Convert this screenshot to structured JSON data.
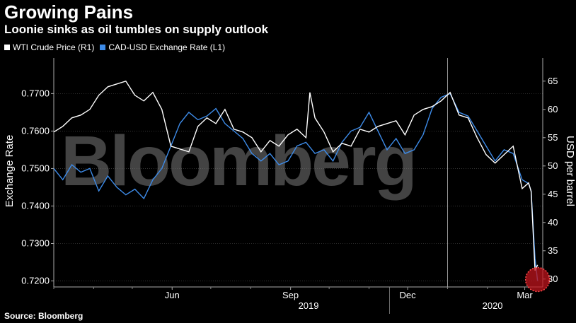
{
  "header": {
    "title": "Growing Pains",
    "subtitle": "Loonie sinks as oil tumbles on supply outlook"
  },
  "footer": {
    "source": "Source: Bloomberg"
  },
  "watermark": "Bloomberg",
  "colors": {
    "wti": "#ffffff",
    "cad": "#3d8be8",
    "highlight": "#c0141c",
    "grid": "#555555"
  },
  "chart_data": {
    "type": "line",
    "title": "Growing Pains",
    "subtitle": "Loonie sinks as oil tumbles on supply outlook",
    "ylabel_left": "Exchange Rate",
    "ylabel_right": "USD per barrel",
    "yticks_left": [
      "0.7700",
      "0.7600",
      "0.7500",
      "0.7400",
      "0.7300",
      "0.7200"
    ],
    "yticks_right": [
      "65",
      "60",
      "55",
      "50",
      "45",
      "40",
      "35",
      "30"
    ],
    "ylim_left": [
      0.7184,
      0.7795
    ],
    "ylim_right": [
      28.6,
      69.1
    ],
    "xticks": [
      "Jun",
      "Sep",
      "Dec",
      "Mar"
    ],
    "years": [
      "2019",
      "2020"
    ],
    "xlim": [
      "2019-03-01",
      "2020-03-15"
    ],
    "grid": true,
    "legend_position": "top-left",
    "series": [
      {
        "name": "WTI Crude Price (R1)",
        "axis": "right",
        "x": [
          "2019-03-01",
          "2019-03-08",
          "2019-03-15",
          "2019-03-22",
          "2019-03-29",
          "2019-04-05",
          "2019-04-12",
          "2019-04-19",
          "2019-04-26",
          "2019-05-03",
          "2019-05-10",
          "2019-05-17",
          "2019-05-24",
          "2019-05-31",
          "2019-06-07",
          "2019-06-14",
          "2019-06-21",
          "2019-06-28",
          "2019-07-05",
          "2019-07-12",
          "2019-07-19",
          "2019-07-26",
          "2019-08-02",
          "2019-08-09",
          "2019-08-16",
          "2019-08-23",
          "2019-08-30",
          "2019-09-06",
          "2019-09-13",
          "2019-09-16",
          "2019-09-20",
          "2019-09-27",
          "2019-10-04",
          "2019-10-11",
          "2019-10-18",
          "2019-10-25",
          "2019-11-01",
          "2019-11-08",
          "2019-11-15",
          "2019-11-22",
          "2019-11-29",
          "2019-12-06",
          "2019-12-13",
          "2019-12-20",
          "2019-12-27",
          "2020-01-03",
          "2020-01-10",
          "2020-01-17",
          "2020-01-24",
          "2020-01-31",
          "2020-02-07",
          "2020-02-14",
          "2020-02-21",
          "2020-02-28",
          "2020-03-04",
          "2020-03-06",
          "2020-03-09",
          "2020-03-11"
        ],
        "values": [
          56.0,
          57.0,
          58.5,
          59.0,
          60.0,
          62.5,
          64.0,
          64.5,
          65.0,
          62.5,
          61.5,
          63.0,
          60.0,
          53.5,
          53.0,
          52.5,
          57.0,
          58.5,
          57.5,
          60.0,
          56.5,
          56.0,
          55.0,
          52.5,
          54.5,
          53.5,
          55.5,
          56.5,
          55.0,
          63.0,
          58.5,
          56.0,
          52.5,
          54.0,
          53.5,
          56.5,
          56.0,
          57.0,
          57.5,
          58.0,
          55.5,
          59.0,
          60.0,
          60.5,
          61.5,
          63.0,
          59.0,
          58.5,
          55.0,
          52.0,
          50.5,
          52.0,
          53.5,
          46.0,
          47.0,
          45.5,
          31.5,
          32.5
        ]
      },
      {
        "name": "CAD-USD Exchange Rate (L1)",
        "axis": "left",
        "x": [
          "2019-03-01",
          "2019-03-08",
          "2019-03-15",
          "2019-03-22",
          "2019-03-29",
          "2019-04-05",
          "2019-04-12",
          "2019-04-19",
          "2019-04-26",
          "2019-05-03",
          "2019-05-10",
          "2019-05-17",
          "2019-05-24",
          "2019-05-31",
          "2019-06-07",
          "2019-06-14",
          "2019-06-21",
          "2019-06-28",
          "2019-07-05",
          "2019-07-12",
          "2019-07-19",
          "2019-07-26",
          "2019-08-02",
          "2019-08-09",
          "2019-08-16",
          "2019-08-23",
          "2019-08-30",
          "2019-09-06",
          "2019-09-13",
          "2019-09-20",
          "2019-09-27",
          "2019-10-04",
          "2019-10-11",
          "2019-10-18",
          "2019-10-25",
          "2019-11-01",
          "2019-11-08",
          "2019-11-15",
          "2019-11-22",
          "2019-11-29",
          "2019-12-06",
          "2019-12-13",
          "2019-12-20",
          "2019-12-27",
          "2020-01-03",
          "2020-01-10",
          "2020-01-17",
          "2020-01-24",
          "2020-01-31",
          "2020-02-07",
          "2020-02-14",
          "2020-02-21",
          "2020-02-28",
          "2020-03-04",
          "2020-03-06",
          "2020-03-09",
          "2020-03-11"
        ],
        "values": [
          0.75,
          0.747,
          0.751,
          0.749,
          0.75,
          0.744,
          0.748,
          0.745,
          0.743,
          0.7445,
          0.742,
          0.747,
          0.75,
          0.756,
          0.762,
          0.765,
          0.763,
          0.764,
          0.766,
          0.762,
          0.76,
          0.758,
          0.754,
          0.752,
          0.754,
          0.751,
          0.752,
          0.756,
          0.757,
          0.754,
          0.755,
          0.752,
          0.757,
          0.76,
          0.761,
          0.765,
          0.76,
          0.755,
          0.758,
          0.754,
          0.755,
          0.759,
          0.766,
          0.769,
          0.77,
          0.765,
          0.764,
          0.76,
          0.756,
          0.752,
          0.755,
          0.754,
          0.747,
          0.746,
          0.744,
          0.726,
          0.72
        ]
      }
    ]
  }
}
